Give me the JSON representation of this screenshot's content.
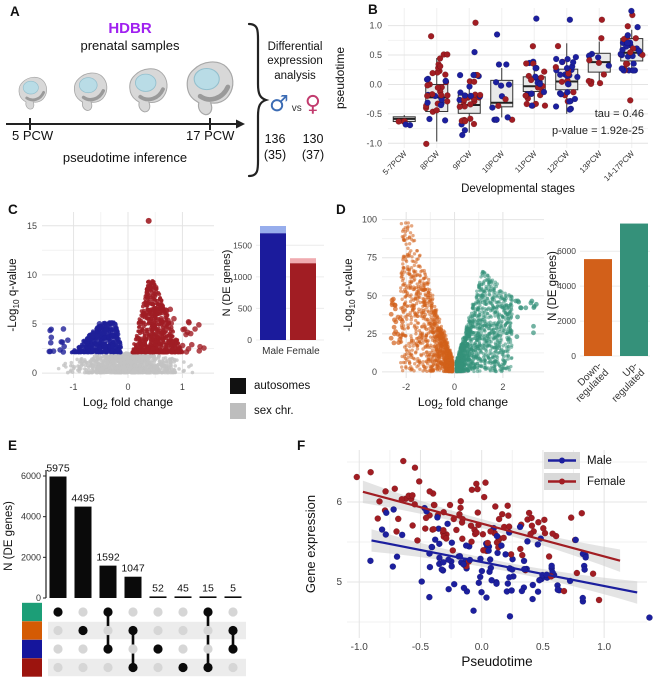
{
  "panels": {
    "A": {
      "label": "A",
      "hdbr": "HDBR",
      "subtitle": "prenatal samples",
      "start": "5 PCW",
      "end": "17 PCW",
      "inference": "pseudotime inference",
      "analysis": "Differential expression analysis",
      "male_symbol": "♂",
      "vs": "vs",
      "female_symbol": "♀",
      "male_count": "136",
      "male_sub": "(35)",
      "female_count": "130",
      "female_sub": "(37)",
      "male_color": "#3C6CB4",
      "female_color": "#C23B6E",
      "hdbr_color": "#A020F0"
    },
    "B": {
      "label": "B"
    },
    "C": {
      "label": "C"
    },
    "D": {
      "label": "D"
    },
    "E": {
      "label": "E"
    },
    "F": {
      "label": "F"
    }
  },
  "chart_data": [
    {
      "id": "B",
      "type": "boxplot-jitter",
      "xlabel": "Developmental stages",
      "ylabel": "pseudotime",
      "categories": [
        "5-7PCW",
        "8PCW",
        "9PCW",
        "10PCW",
        "11PCW",
        "12PCW",
        "13PCW",
        "14-17PCW"
      ],
      "yticks": [
        "1.0",
        "0.5",
        "0.0",
        "-0.5",
        "-1.0"
      ],
      "ytick_values": [
        1,
        0.5,
        0,
        -0.5,
        -1
      ],
      "yticks_minor": [
        0.75,
        0.25,
        -0.25,
        -0.75
      ],
      "ylim": [
        -1.08,
        1.3
      ],
      "boxes": [
        {
          "lo": -0.66,
          "q1": -0.63,
          "med": -0.585,
          "q3": -0.55,
          "hi": -0.52
        },
        {
          "lo": -0.97,
          "q1": -0.46,
          "med": -0.22,
          "q3": 0.0,
          "hi": 0.45
        },
        {
          "lo": -0.82,
          "q1": -0.49,
          "med": -0.35,
          "q3": -0.18,
          "hi": 0.1
        },
        {
          "lo": -0.56,
          "q1": -0.38,
          "med": -0.31,
          "q3": 0.07,
          "hi": 0.28
        },
        {
          "lo": -0.32,
          "q1": -0.12,
          "med": -0.03,
          "q3": 0.13,
          "hi": 0.38
        },
        {
          "lo": -0.5,
          "q1": -0.09,
          "med": 0.05,
          "q3": 0.26,
          "hi": 0.7
        },
        {
          "lo": 0.05,
          "q1": 0.21,
          "med": 0.38,
          "q3": 0.53,
          "hi": 0.73
        },
        {
          "lo": 0.28,
          "q1": 0.4,
          "med": 0.54,
          "q3": 0.78,
          "hi": 0.93
        }
      ],
      "points": [
        {
          "red": 3,
          "blue": 1
        },
        {
          "red": 27,
          "blue": 13
        },
        {
          "red": 22,
          "blue": 14
        },
        {
          "red": 3,
          "blue": 11
        },
        {
          "red": 17,
          "blue": 15
        },
        {
          "red": 10,
          "blue": 25
        },
        {
          "red": 8,
          "blue": 4
        },
        {
          "red": 12,
          "blue": 22
        }
      ],
      "outliers": [
        [
          0,
          "blue",
          -0.68
        ],
        [
          1,
          "red",
          0.82
        ],
        [
          2,
          "red",
          1.05
        ],
        [
          2,
          "blue",
          0.55
        ],
        [
          3,
          "blue",
          0.85
        ],
        [
          4,
          "blue",
          1.12
        ],
        [
          4,
          "red",
          0.65
        ],
        [
          5,
          "blue",
          1.1
        ],
        [
          6,
          "red",
          1.1
        ],
        [
          7,
          "blue",
          1.25
        ],
        [
          7,
          "red",
          1.18
        ],
        [
          7,
          "red",
          -0.27
        ]
      ],
      "point_colors": {
        "red": "#A11D23",
        "blue": "#1C1F9E"
      },
      "annotation": [
        "tau = 0.46",
        "p-value = 1.92e-25"
      ]
    },
    {
      "id": "C_volcano",
      "type": "volcano",
      "xlabel": "Log_{2} fold change",
      "ylabel": "-Log_{10} q-value",
      "xticks": [
        -1,
        0,
        1
      ],
      "yticks": [
        0,
        5,
        10,
        15
      ],
      "xlim": [
        -1.58,
        1.58
      ],
      "ylim": [
        -0.5,
        16.4
      ],
      "significance_threshold": 2.1,
      "clusters": {
        "down": {
          "color": "#1F2099",
          "n": 520,
          "x_range": [
            -1.05,
            -0.08
          ],
          "y_range": [
            2.1,
            5.3
          ]
        },
        "up": {
          "color": "#A01D24",
          "n": 750,
          "x_range": [
            0.05,
            1.0
          ],
          "y_range": [
            2.1,
            9.4
          ]
        },
        "ns": {
          "color": "#C3C3C3",
          "n": 1000,
          "x_range": [
            -1.5,
            1.5
          ],
          "y_range": [
            0,
            2.1
          ]
        }
      },
      "top_outlier": [
        0.38,
        15.5
      ]
    },
    {
      "id": "C_bar",
      "type": "stacked-bar",
      "ylabel": "N (DE genes)",
      "categories": [
        "Male",
        "Female"
      ],
      "series": [
        {
          "name": "autosomes",
          "values": [
            1690,
            1215
          ]
        },
        {
          "name": "sex chr.",
          "values": [
            115,
            80
          ]
        }
      ],
      "bar_colors": [
        "#1B1B9C",
        "#A11D23"
      ],
      "bar_colors_light": [
        "#97ADEC",
        "#F0ABB0"
      ],
      "yticks": [
        0,
        500,
        1000,
        1500
      ],
      "ylim": [
        0,
        1900
      ],
      "legend": [
        {
          "name": "autosomes",
          "color": "#111111"
        },
        {
          "name": "sex chr.",
          "color": "#BDBDBD"
        }
      ]
    },
    {
      "id": "D_volcano",
      "type": "volcano",
      "xlabel": "Log_{2} fold change",
      "ylabel": "-Log_{10} q-value",
      "xticks": [
        -2,
        0,
        2
      ],
      "yticks": [
        0,
        25,
        50,
        75,
        100
      ],
      "xlim": [
        -3.0,
        3.7
      ],
      "ylim": [
        -4,
        105
      ],
      "clusters": {
        "down": {
          "color": "#D2601A",
          "n": 1150,
          "x_range": [
            -2.65,
            -0.08
          ],
          "y_range": [
            0,
            98
          ]
        },
        "up": {
          "color": "#35917A",
          "n": 1350,
          "x_range": [
            0.08,
            3.4
          ],
          "y_range": [
            0,
            68
          ]
        },
        "ns": {
          "color": "#C3C3C3",
          "n": 220,
          "x_range": [
            -0.7,
            0.9
          ],
          "y_range": [
            0,
            2.5
          ]
        }
      }
    },
    {
      "id": "D_bar",
      "type": "bar",
      "ylabel": "N (DE genes)",
      "categories": [
        [
          "Down-",
          "regulated"
        ],
        [
          "Up-",
          "regulated"
        ]
      ],
      "values": [
        5547,
        7582
      ],
      "colors": [
        "#D2601A",
        "#35917A"
      ],
      "yticks": [
        0,
        2000,
        4000,
        6000
      ],
      "ylim": [
        0,
        7900
      ]
    },
    {
      "id": "E_upset",
      "type": "upset",
      "ylabel": "N (DE genes)",
      "values": [
        5975,
        4495,
        1592,
        1047,
        52,
        45,
        15,
        5
      ],
      "memberships": [
        [
          0
        ],
        [
          1
        ],
        [
          0,
          2
        ],
        [
          1,
          3
        ],
        [
          2
        ],
        [
          3
        ],
        [
          0,
          3
        ],
        [
          1,
          2
        ]
      ],
      "set_colors": [
        "#1C9E77",
        "#D45B04",
        "#15159C",
        "#9C140E"
      ],
      "yticks": [
        0,
        2000,
        4000,
        6000
      ],
      "ylim": [
        0,
        6600
      ]
    },
    {
      "id": "F",
      "type": "scatter-fit",
      "xlabel": "Pseudotime",
      "ylabel": "Gene expression",
      "xticks": [
        "-1.0",
        "-0.5",
        "0.0",
        "0.5",
        "1.0"
      ],
      "xtick_values": [
        -1,
        -0.5,
        0,
        0.5,
        1
      ],
      "yticks": [
        5,
        6
      ],
      "yticks_minor": [
        4.5,
        5.5,
        6.5
      ],
      "xlim": [
        -1.1,
        1.35
      ],
      "ylim": [
        4.3,
        6.65
      ],
      "series": [
        {
          "name": "Male",
          "color": "#1C1F9E",
          "n": 112,
          "intercept": 5.25,
          "slope": -0.3,
          "sd": 0.27,
          "x_mean": 0.05,
          "x_sd": 0.48,
          "line_x": [
            -0.9,
            1.27
          ]
        },
        {
          "name": "Female",
          "color": "#A11D23",
          "n": 104,
          "intercept": 5.73,
          "slope": -0.41,
          "sd": 0.26,
          "x_mean": -0.02,
          "x_sd": 0.45,
          "line_x": [
            -0.97,
            1.13
          ]
        }
      ]
    }
  ]
}
